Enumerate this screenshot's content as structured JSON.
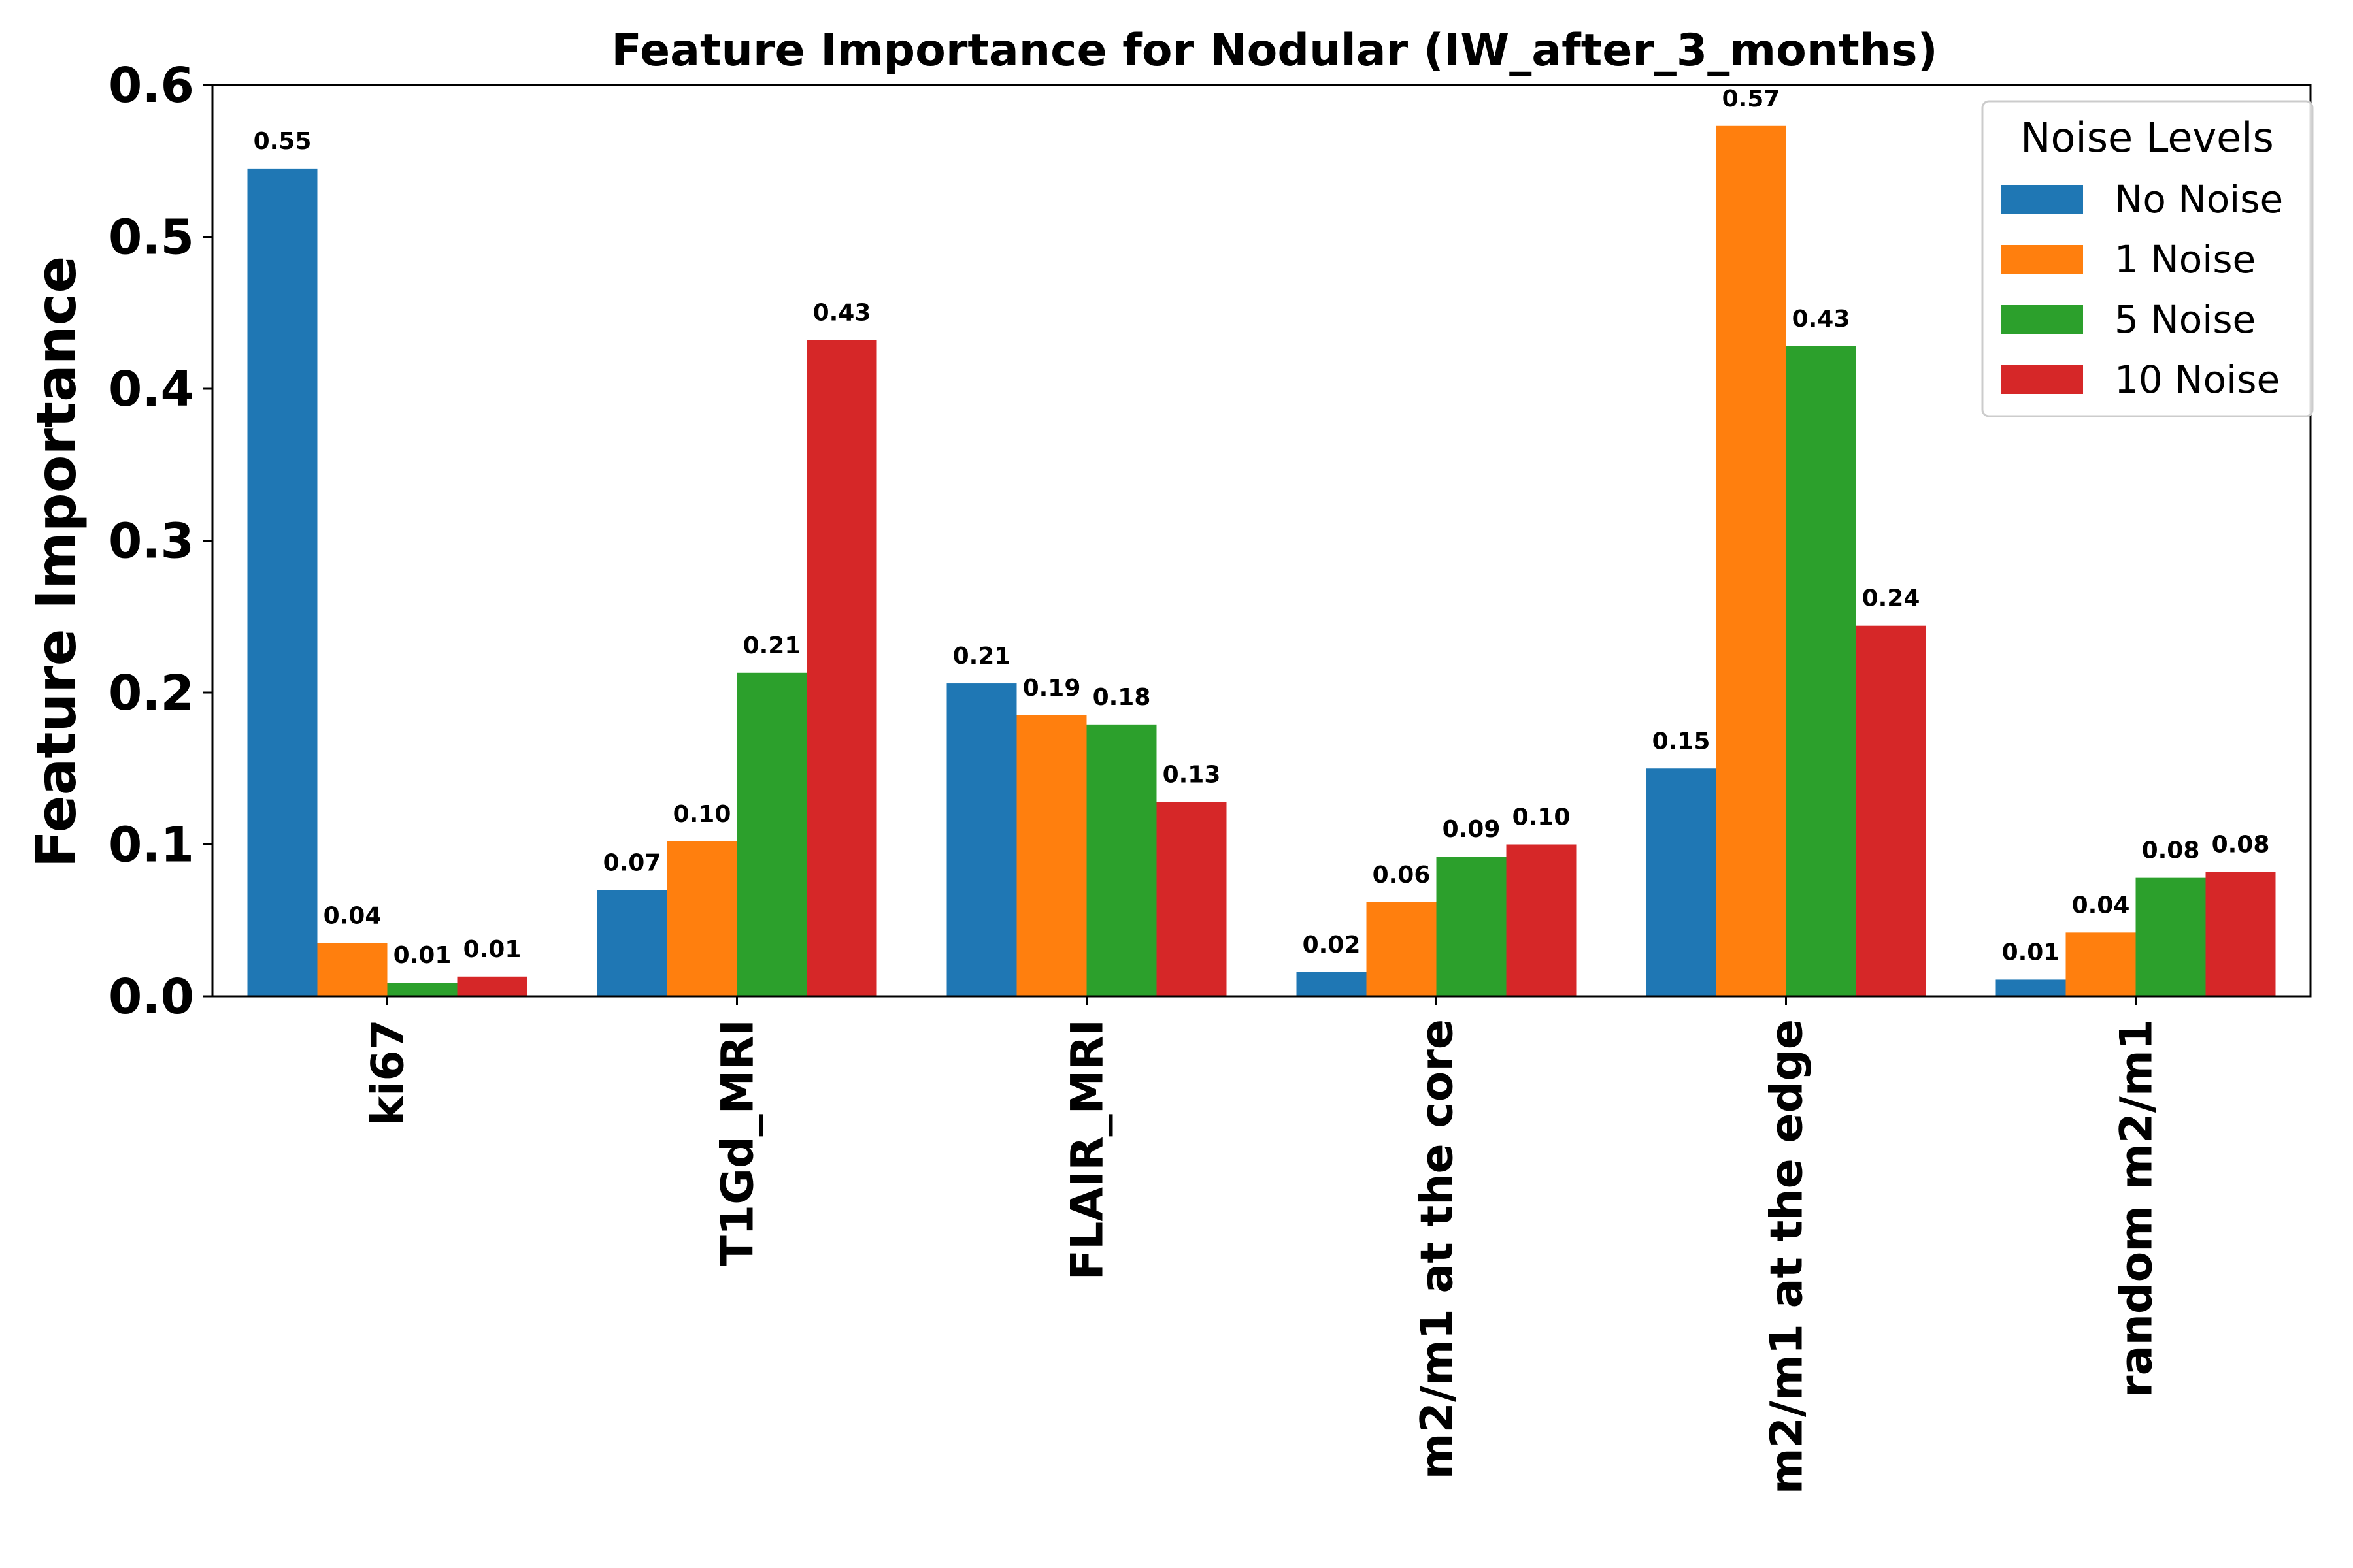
{
  "chart_data": {
    "type": "bar",
    "title": "Feature Importance for Nodular (IW_after_3_months)",
    "xlabel": "",
    "ylabel": "Feature Importance",
    "ylim": [
      0,
      0.6
    ],
    "yticks": [
      "0.0",
      "0.1",
      "0.2",
      "0.3",
      "0.4",
      "0.5",
      "0.6"
    ],
    "categories": [
      "ki67",
      "T1Gd_MRI",
      "FLAIR_MRI",
      "m2/m1 at the core",
      "m2/m1 at the edge",
      "random m2/m1"
    ],
    "legend_title": "Noise Levels",
    "legend_position": "top-right",
    "grid": false,
    "series": [
      {
        "name": "No Noise",
        "color": "#1f77b4",
        "values": [
          0.545,
          0.07,
          0.206,
          0.016,
          0.15,
          0.011
        ],
        "labels": [
          "0.55",
          "0.07",
          "0.21",
          "0.02",
          "0.15",
          "0.01"
        ]
      },
      {
        "name": "1 Noise",
        "color": "#ff7f0e",
        "values": [
          0.035,
          0.102,
          0.185,
          0.062,
          0.573,
          0.042
        ],
        "labels": [
          "0.04",
          "0.10",
          "0.19",
          "0.06",
          "0.57",
          "0.04"
        ]
      },
      {
        "name": "5 Noise",
        "color": "#2ca02c",
        "values": [
          0.009,
          0.213,
          0.179,
          0.092,
          0.428,
          0.078
        ],
        "labels": [
          "0.01",
          "0.21",
          "0.18",
          "0.09",
          "0.43",
          "0.08"
        ]
      },
      {
        "name": "10 Noise",
        "color": "#d62728",
        "values": [
          0.013,
          0.432,
          0.128,
          0.1,
          0.244,
          0.082
        ],
        "labels": [
          "0.01",
          "0.43",
          "0.13",
          "0.10",
          "0.24",
          "0.08"
        ]
      }
    ]
  }
}
